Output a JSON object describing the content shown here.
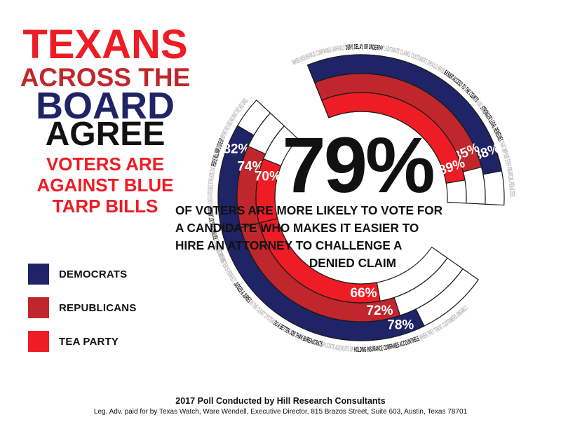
{
  "headline": {
    "line1": "TEXANS",
    "line2": "ACROSS THE",
    "line3": "BOARD",
    "line4": "AGREE",
    "sub1": "VOTERS ARE",
    "sub2": "AGAINST BLUE",
    "sub3": "TARP BILLS"
  },
  "colors": {
    "democrats": "#1f2466",
    "republicans": "#c0272d",
    "tea_party": "#ee1c24",
    "text_gray": "#b3b3b3",
    "text_dark": "#111111",
    "headline_red": "#ee1c24",
    "headline_dark_red": "#c0272d",
    "headline_navy": "#1f2466"
  },
  "legend": [
    {
      "label": "DEMOCRATS",
      "color": "#1f2466"
    },
    {
      "label": "REPUBLICANS",
      "color": "#c0272d"
    },
    {
      "label": "TEA PARTY",
      "color": "#ee1c24"
    }
  ],
  "center": {
    "big": "79%",
    "caption": [
      "OF VOTERS ARE MORE LIKELY TO VOTE FOR",
      "A CANDIDATE WHO MAKES IT EASIER TO",
      "HIRE AN ATTORNEY TO CHALLENGE A",
      "DENIED CLAIM"
    ]
  },
  "chart_data": {
    "type": "radial-bar",
    "headline_value": 79,
    "series": [
      {
        "name": "DEMOCRATS",
        "values": [
          82,
          88,
          78
        ]
      },
      {
        "name": "REPUBLICANS",
        "values": [
          74,
          85,
          72
        ]
      },
      {
        "name": "TEA PARTY",
        "values": [
          70,
          89,
          66
        ]
      }
    ],
    "statements": [
      [
        {
          "t": "INSURANCE COMPANIES ",
          "dark": false
        },
        {
          "t": "ROUTINELY DRAG OUT LAWSUITS",
          "dark": true
        },
        {
          "t": " AS LONG AS POSSIBLE IN THE HOPE THAT ",
          "dark": false
        },
        {
          "t": "PEOPLE WILL SIMPLY GIVE UP",
          "dark": true
        },
        {
          "t": " BEFORE THEY ARE PAID WHAT THEY ARE OWED.",
          "dark": false
        }
      ],
      [
        {
          "t": "WHEN INSURANCE COMPANIES UNFAIRLY ",
          "dark": false
        },
        {
          "t": "DENY, DELAY, OR UNDERPAY",
          "dark": true
        },
        {
          "t": " LEGITIMATE CLAIMS, CUSTOMERS SHOULD HAVE ",
          "dark": false
        },
        {
          "t": "EASIER ACCESS TO THE COURTS",
          "dark": true
        },
        {
          "t": " AND ",
          "dark": false
        },
        {
          "t": "STRONGER LEGAL REMEDIES",
          "dark": true
        },
        {
          "t": " THAT IMPOSE STIFF FINANCIAL PENALTIES.",
          "dark": false
        }
      ],
      [
        {
          "t": "WHILE NO SYSTEM IS PERFECT, ",
          "dark": false
        },
        {
          "t": "JUDGES & JURIES",
          "dark": true
        },
        {
          "t": " IN THE COURT SYSTEM ",
          "dark": false
        },
        {
          "t": "DO A BETTER JOB THAN BUREAUCRATS",
          "dark": true
        },
        {
          "t": " IN STATE AGENCIES OF ",
          "dark": false
        },
        {
          "t": "HOLDING INSURANCE COMPANIES ACCOUNTABLE",
          "dark": true
        },
        {
          "t": " WHEN THEY TREAT CUSTOMERS UNFAIRLY.",
          "dark": false
        }
      ]
    ]
  },
  "footer": {
    "poll": "2017 Poll Conducted by Hill Research Consultants",
    "disclaimer": "Leg. Adv. paid for by Texas Watch, Ware Wendell, Executive Director, 815 Brazos Street, Suite 603, Austin, Texas 78701"
  }
}
